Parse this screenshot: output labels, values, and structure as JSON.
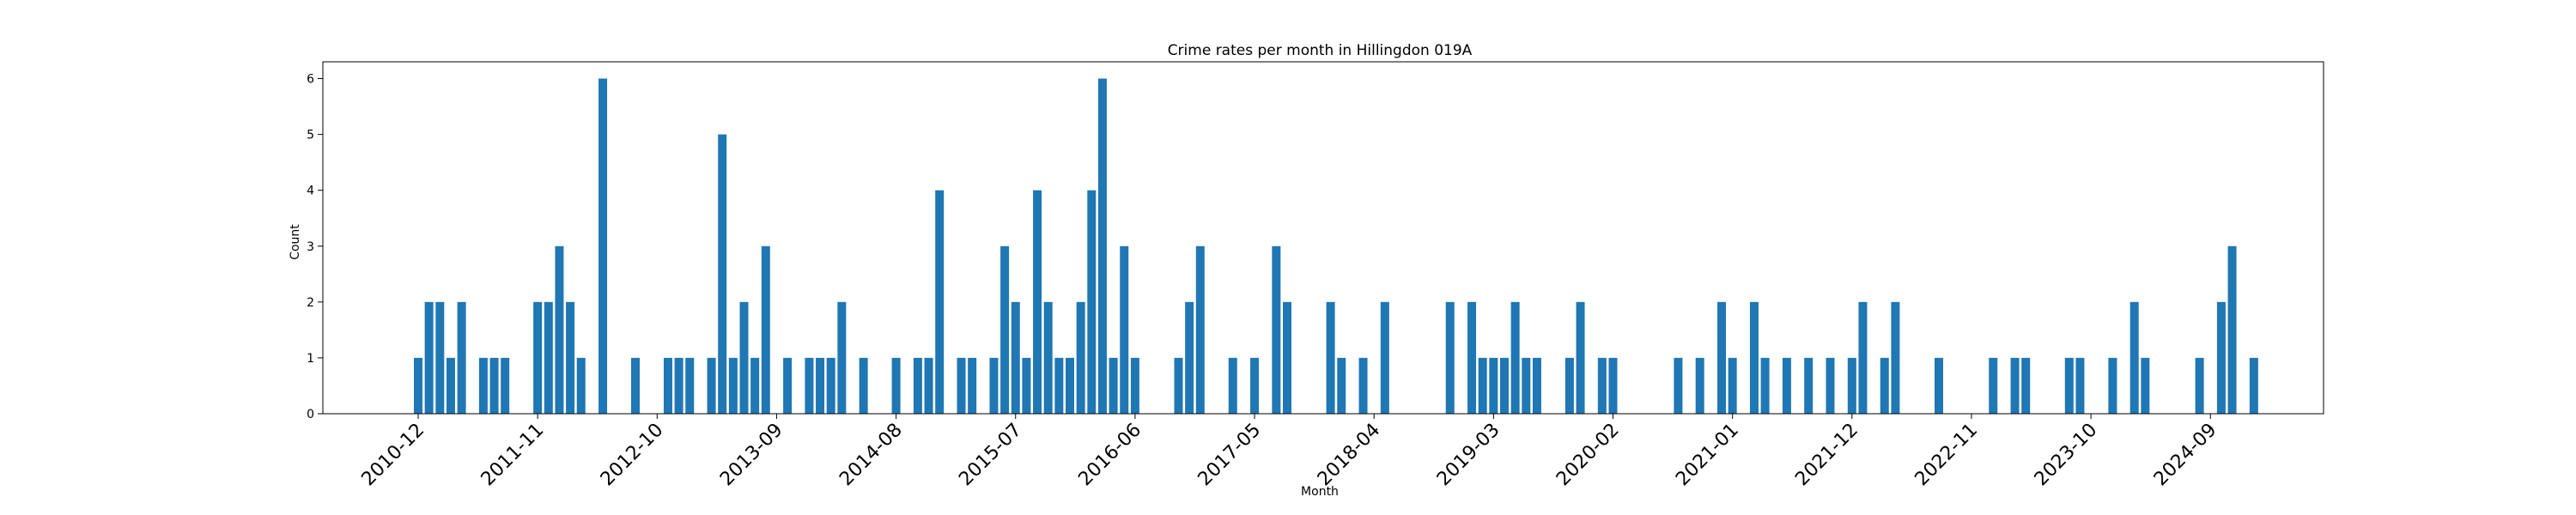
{
  "chart_data": {
    "type": "bar",
    "title": "Crime rates per month in Hillingdon 019A",
    "xlabel": "Month",
    "ylabel": "Count",
    "ylim": [
      0,
      6.3
    ],
    "yticks": [
      0,
      1,
      2,
      3,
      4,
      5,
      6
    ],
    "xtick_labels": [
      "2010-12",
      "2011-11",
      "2012-10",
      "2013-09",
      "2014-08",
      "2015-07",
      "2016-06",
      "2017-05",
      "2018-04",
      "2019-03",
      "2020-02",
      "2021-01",
      "2021-12",
      "2022-11",
      "2023-10",
      "2024-09"
    ],
    "color": "#1f77b4",
    "data": [
      {
        "x": "2010-12",
        "y": 1
      },
      {
        "x": "2011-01",
        "y": 2
      },
      {
        "x": "2011-02",
        "y": 2
      },
      {
        "x": "2011-03",
        "y": 1
      },
      {
        "x": "2011-04",
        "y": 2
      },
      {
        "x": "2011-06",
        "y": 1
      },
      {
        "x": "2011-07",
        "y": 1
      },
      {
        "x": "2011-08",
        "y": 1
      },
      {
        "x": "2011-11",
        "y": 2
      },
      {
        "x": "2011-12",
        "y": 2
      },
      {
        "x": "2012-01",
        "y": 3
      },
      {
        "x": "2012-02",
        "y": 2
      },
      {
        "x": "2012-03",
        "y": 1
      },
      {
        "x": "2012-05",
        "y": 6
      },
      {
        "x": "2012-08",
        "y": 1
      },
      {
        "x": "2012-11",
        "y": 1
      },
      {
        "x": "2012-12",
        "y": 1
      },
      {
        "x": "2013-01",
        "y": 1
      },
      {
        "x": "2013-03",
        "y": 1
      },
      {
        "x": "2013-04",
        "y": 5
      },
      {
        "x": "2013-05",
        "y": 1
      },
      {
        "x": "2013-06",
        "y": 2
      },
      {
        "x": "2013-07",
        "y": 1
      },
      {
        "x": "2013-08",
        "y": 3
      },
      {
        "x": "2013-10",
        "y": 1
      },
      {
        "x": "2013-12",
        "y": 1
      },
      {
        "x": "2014-01",
        "y": 1
      },
      {
        "x": "2014-02",
        "y": 1
      },
      {
        "x": "2014-03",
        "y": 2
      },
      {
        "x": "2014-05",
        "y": 1
      },
      {
        "x": "2014-08",
        "y": 1
      },
      {
        "x": "2014-10",
        "y": 1
      },
      {
        "x": "2014-11",
        "y": 1
      },
      {
        "x": "2014-12",
        "y": 4
      },
      {
        "x": "2015-02",
        "y": 1
      },
      {
        "x": "2015-03",
        "y": 1
      },
      {
        "x": "2015-05",
        "y": 1
      },
      {
        "x": "2015-06",
        "y": 3
      },
      {
        "x": "2015-07",
        "y": 2
      },
      {
        "x": "2015-08",
        "y": 1
      },
      {
        "x": "2015-09",
        "y": 4
      },
      {
        "x": "2015-10",
        "y": 2
      },
      {
        "x": "2015-11",
        "y": 1
      },
      {
        "x": "2015-12",
        "y": 1
      },
      {
        "x": "2016-01",
        "y": 2
      },
      {
        "x": "2016-02",
        "y": 4
      },
      {
        "x": "2016-03",
        "y": 6
      },
      {
        "x": "2016-04",
        "y": 1
      },
      {
        "x": "2016-05",
        "y": 3
      },
      {
        "x": "2016-06",
        "y": 1
      },
      {
        "x": "2016-10",
        "y": 1
      },
      {
        "x": "2016-11",
        "y": 2
      },
      {
        "x": "2016-12",
        "y": 3
      },
      {
        "x": "2017-03",
        "y": 1
      },
      {
        "x": "2017-05",
        "y": 1
      },
      {
        "x": "2017-07",
        "y": 3
      },
      {
        "x": "2017-08",
        "y": 2
      },
      {
        "x": "2017-12",
        "y": 2
      },
      {
        "x": "2018-01",
        "y": 1
      },
      {
        "x": "2018-03",
        "y": 1
      },
      {
        "x": "2018-05",
        "y": 2
      },
      {
        "x": "2018-11",
        "y": 2
      },
      {
        "x": "2019-01",
        "y": 2
      },
      {
        "x": "2019-02",
        "y": 1
      },
      {
        "x": "2019-03",
        "y": 1
      },
      {
        "x": "2019-04",
        "y": 1
      },
      {
        "x": "2019-05",
        "y": 2
      },
      {
        "x": "2019-06",
        "y": 1
      },
      {
        "x": "2019-07",
        "y": 1
      },
      {
        "x": "2019-10",
        "y": 1
      },
      {
        "x": "2019-11",
        "y": 2
      },
      {
        "x": "2020-01",
        "y": 1
      },
      {
        "x": "2020-02",
        "y": 1
      },
      {
        "x": "2020-08",
        "y": 1
      },
      {
        "x": "2020-10",
        "y": 1
      },
      {
        "x": "2020-12",
        "y": 2
      },
      {
        "x": "2021-01",
        "y": 1
      },
      {
        "x": "2021-03",
        "y": 2
      },
      {
        "x": "2021-04",
        "y": 1
      },
      {
        "x": "2021-06",
        "y": 1
      },
      {
        "x": "2021-08",
        "y": 1
      },
      {
        "x": "2021-10",
        "y": 1
      },
      {
        "x": "2021-12",
        "y": 1
      },
      {
        "x": "2022-01",
        "y": 2
      },
      {
        "x": "2022-03",
        "y": 1
      },
      {
        "x": "2022-04",
        "y": 2
      },
      {
        "x": "2022-08",
        "y": 1
      },
      {
        "x": "2023-01",
        "y": 1
      },
      {
        "x": "2023-03",
        "y": 1
      },
      {
        "x": "2023-04",
        "y": 1
      },
      {
        "x": "2023-08",
        "y": 1
      },
      {
        "x": "2023-09",
        "y": 1
      },
      {
        "x": "2023-12",
        "y": 1
      },
      {
        "x": "2024-02",
        "y": 2
      },
      {
        "x": "2024-03",
        "y": 1
      },
      {
        "x": "2024-08",
        "y": 1
      },
      {
        "x": "2024-10",
        "y": 2
      },
      {
        "x": "2024-11",
        "y": 3
      },
      {
        "x": "2025-01",
        "y": 1
      }
    ]
  }
}
